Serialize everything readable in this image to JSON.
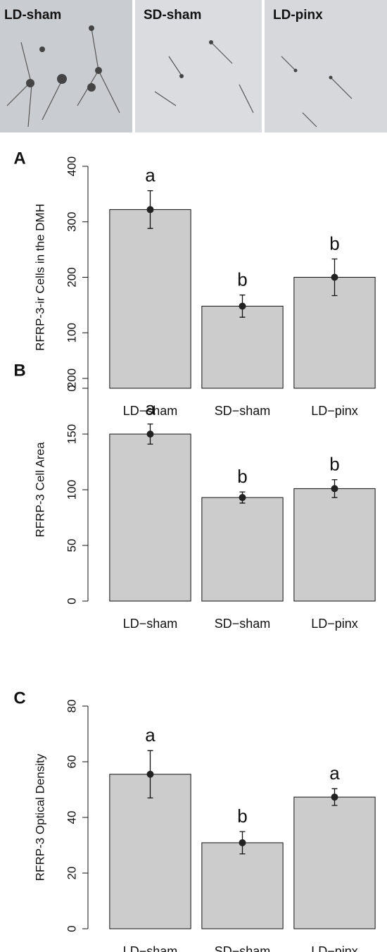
{
  "photo_panels": [
    "LD-sham",
    "SD-sham",
    "LD-pinx"
  ],
  "chart_data": [
    {
      "type": "bar",
      "panel_label": "A",
      "ylabel": "RFRP-3-ir Cells in the DMH",
      "categories": [
        "LD−sham",
        "SD−sham",
        "LD−pinx"
      ],
      "values": [
        322,
        148,
        200
      ],
      "errors": [
        34,
        20,
        33
      ],
      "annotations": [
        "a",
        "b",
        "b"
      ],
      "color": "#cccccc",
      "ylim": [
        0,
        400
      ],
      "yticks": [
        0,
        100,
        200,
        300,
        400
      ]
    },
    {
      "type": "bar",
      "panel_label": "B",
      "ylabel": "RFRP-3 Cell Area",
      "categories": [
        "LD−sham",
        "SD−sham",
        "LD−pinx"
      ],
      "values": [
        150,
        93,
        101
      ],
      "errors": [
        9,
        5,
        8
      ],
      "annotations": [
        "a",
        "b",
        "b"
      ],
      "color": "#cccccc",
      "ylim": [
        0,
        200
      ],
      "yticks": [
        0,
        50,
        100,
        150,
        200
      ]
    },
    {
      "type": "bar",
      "panel_label": "C",
      "ylabel": "RFRP-3 Optical Density",
      "categories": [
        "LD−sham",
        "SD−sham",
        "LD−pinx"
      ],
      "values": [
        55.5,
        30.9,
        47.3
      ],
      "errors": [
        8.5,
        4,
        3
      ],
      "annotations": [
        "a",
        "b",
        "a"
      ],
      "color": "#cccccc",
      "ylim": [
        0,
        80
      ],
      "yticks": [
        0,
        20,
        40,
        60,
        80
      ]
    }
  ]
}
